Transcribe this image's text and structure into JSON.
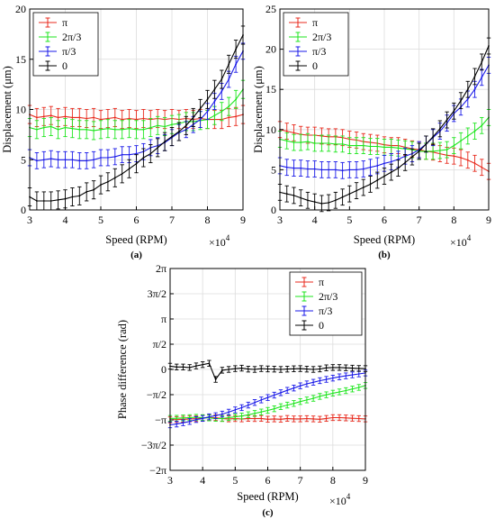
{
  "colors": {
    "pi": "#e8291c",
    "two_pi_3": "#1ee61e",
    "pi_3": "#1a1ae8",
    "zero": "#000000"
  },
  "chart_data": [
    {
      "id": "a",
      "type": "line",
      "panel_label": "(a)",
      "xlabel": "Speed (RPM)",
      "ylabel": "Displacement (μm)",
      "x_multiplier": "×10",
      "x_multiplier_exp": "4",
      "xlim": [
        3,
        9
      ],
      "ylim": [
        0,
        20
      ],
      "xticks": [
        3,
        4,
        5,
        6,
        7,
        8,
        9
      ],
      "xtick_labels": [
        "3",
        "4",
        "5",
        "6",
        "7",
        "8",
        "9"
      ],
      "yticks": [
        0,
        5,
        10,
        15,
        20
      ],
      "ytick_labels": [
        "0",
        "5",
        "10",
        "15",
        "20"
      ],
      "grid": true,
      "legend_position": "top-left",
      "x": [
        3.0,
        3.2,
        3.4,
        3.6,
        3.8,
        4.0,
        4.2,
        4.4,
        4.6,
        4.8,
        5.0,
        5.2,
        5.4,
        5.6,
        5.8,
        6.0,
        6.2,
        6.4,
        6.6,
        6.8,
        7.0,
        7.2,
        7.4,
        7.6,
        7.8,
        8.0,
        8.2,
        8.4,
        8.6,
        8.8,
        9.0
      ],
      "series": [
        {
          "name": "π",
          "color_key": "pi",
          "err": 0.9,
          "values": [
            9.5,
            9.2,
            9.3,
            9.4,
            9.2,
            9.3,
            9.2,
            9.2,
            9.1,
            9.2,
            9.0,
            9.1,
            9.2,
            9.0,
            9.1,
            9.0,
            9.1,
            9.0,
            9.1,
            9.0,
            9.1,
            9.0,
            9.1,
            9.0,
            9.1,
            9.0,
            9.0,
            9.0,
            9.2,
            9.3,
            9.5
          ]
        },
        {
          "name": "2π/3",
          "color_key": "two_pi_3",
          "err": 0.9,
          "values": [
            8.2,
            8.0,
            8.2,
            8.3,
            8.0,
            8.2,
            8.1,
            8.0,
            8.0,
            7.9,
            8.0,
            8.1,
            8.0,
            8.0,
            8.1,
            8.0,
            8.0,
            8.2,
            8.4,
            8.3,
            8.5,
            8.6,
            8.8,
            8.8,
            8.9,
            9.0,
            9.4,
            9.8,
            10.3,
            11.0,
            12.0
          ]
        },
        {
          "name": "π/3",
          "color_key": "pi_3",
          "err": 0.8,
          "values": [
            5.2,
            4.9,
            5.0,
            5.1,
            5.0,
            5.0,
            5.0,
            4.9,
            4.9,
            5.0,
            5.2,
            5.2,
            5.3,
            5.5,
            5.5,
            5.6,
            5.8,
            6.2,
            6.4,
            6.7,
            7.2,
            7.7,
            8.0,
            8.5,
            9.0,
            9.8,
            10.8,
            11.8,
            13.0,
            14.5,
            15.8
          ]
        },
        {
          "name": "0",
          "color_key": "zero",
          "err": 0.9,
          "values": [
            1.3,
            0.9,
            0.9,
            0.9,
            1.0,
            1.1,
            1.3,
            1.4,
            1.8,
            2.0,
            2.5,
            2.8,
            3.2,
            3.6,
            4.1,
            4.6,
            5.2,
            5.6,
            6.2,
            6.8,
            7.3,
            7.8,
            8.4,
            9.2,
            10.1,
            11.0,
            12.0,
            13.0,
            14.5,
            16.0,
            17.4
          ]
        }
      ]
    },
    {
      "id": "b",
      "type": "line",
      "panel_label": "(b)",
      "xlabel": "Speed (RPM)",
      "ylabel": "Displacement (μm)",
      "x_multiplier": "×10",
      "x_multiplier_exp": "4",
      "xlim": [
        3,
        9
      ],
      "ylim": [
        0,
        25
      ],
      "xticks": [
        3,
        4,
        5,
        6,
        7,
        8,
        9
      ],
      "xtick_labels": [
        "3",
        "4",
        "5",
        "6",
        "7",
        "8",
        "9"
      ],
      "yticks": [
        0,
        5,
        10,
        15,
        20,
        25
      ],
      "ytick_labels": [
        "0",
        "5",
        "10",
        "15",
        "20",
        "25"
      ],
      "grid": true,
      "legend_position": "top-left",
      "x": [
        3.0,
        3.2,
        3.4,
        3.6,
        3.8,
        4.0,
        4.2,
        4.4,
        4.6,
        4.8,
        5.0,
        5.2,
        5.4,
        5.6,
        5.8,
        6.0,
        6.2,
        6.4,
        6.6,
        6.8,
        7.0,
        7.2,
        7.4,
        7.6,
        7.8,
        8.0,
        8.2,
        8.4,
        8.6,
        8.8,
        9.0
      ],
      "series": [
        {
          "name": "π",
          "color_key": "pi",
          "err": 1.0,
          "values": [
            10.0,
            9.8,
            9.6,
            9.4,
            9.3,
            9.3,
            9.2,
            9.1,
            9.1,
            9.0,
            8.8,
            8.7,
            8.5,
            8.4,
            8.3,
            8.1,
            8.0,
            8.0,
            7.8,
            7.6,
            7.5,
            7.3,
            7.2,
            7.0,
            6.8,
            6.7,
            6.5,
            6.2,
            5.8,
            5.3,
            4.8
          ]
        },
        {
          "name": "2π/3",
          "color_key": "two_pi_3",
          "err": 1.0,
          "values": [
            8.8,
            8.6,
            8.4,
            8.4,
            8.5,
            8.3,
            8.3,
            8.3,
            8.2,
            8.2,
            8.0,
            8.0,
            8.0,
            7.9,
            7.9,
            7.8,
            7.8,
            7.7,
            7.6,
            7.5,
            7.3,
            7.3,
            7.3,
            7.4,
            7.5,
            8.0,
            8.6,
            9.2,
            9.8,
            10.5,
            11.5
          ]
        },
        {
          "name": "π/3",
          "color_key": "pi_3",
          "err": 1.0,
          "values": [
            5.5,
            5.3,
            5.2,
            5.2,
            5.1,
            5.1,
            5.0,
            5.0,
            5.0,
            4.9,
            5.0,
            5.0,
            5.1,
            5.3,
            5.5,
            5.8,
            6.0,
            6.3,
            6.7,
            7.0,
            7.5,
            8.2,
            9.0,
            9.8,
            10.8,
            12.0,
            12.8,
            13.8,
            15.0,
            16.5,
            18.0
          ]
        },
        {
          "name": "0",
          "color_key": "zero",
          "err": 1.0,
          "values": [
            2.2,
            2.0,
            1.8,
            1.5,
            1.2,
            1.0,
            0.8,
            0.9,
            1.2,
            1.6,
            2.0,
            2.4,
            2.8,
            3.2,
            3.7,
            4.2,
            4.7,
            5.2,
            5.9,
            6.6,
            7.3,
            8.2,
            9.1,
            10.1,
            11.2,
            12.3,
            13.6,
            15.0,
            16.6,
            18.4,
            20.4
          ]
        }
      ]
    },
    {
      "id": "c",
      "type": "line",
      "panel_label": "(c)",
      "xlabel": "Speed (RPM)",
      "ylabel": "Phase difference (rad)",
      "x_multiplier": "×10",
      "x_multiplier_exp": "4",
      "xlim": [
        3,
        9
      ],
      "ylim": [
        -6.2832,
        6.2832
      ],
      "xticks": [
        3,
        4,
        5,
        6,
        7,
        8,
        9
      ],
      "xtick_labels": [
        "3",
        "4",
        "5",
        "6",
        "7",
        "8",
        "9"
      ],
      "yticks": [
        -6.2832,
        -4.7124,
        -3.1416,
        -1.5708,
        0,
        1.5708,
        3.1416,
        4.7124,
        6.2832
      ],
      "ytick_labels": [
        "−2π",
        "−3π/2",
        "−π",
        "−π/2",
        "0",
        "π/2",
        "π",
        "3π/2",
        "2π"
      ],
      "grid": true,
      "legend_position": "top-right",
      "x": [
        3.0,
        3.2,
        3.4,
        3.6,
        3.8,
        4.0,
        4.2,
        4.4,
        4.6,
        4.8,
        5.0,
        5.2,
        5.4,
        5.6,
        5.8,
        6.0,
        6.2,
        6.4,
        6.6,
        6.8,
        7.0,
        7.2,
        7.4,
        7.6,
        7.8,
        8.0,
        8.2,
        8.4,
        8.6,
        8.8,
        9.0
      ],
      "series": [
        {
          "name": "π",
          "color_key": "pi",
          "err": 0.18,
          "values": [
            -3.14,
            -3.12,
            -3.1,
            -3.08,
            -3.06,
            -3.02,
            -3.0,
            -3.0,
            -3.05,
            -3.08,
            -3.06,
            -3.08,
            -3.05,
            -3.06,
            -3.05,
            -3.1,
            -3.08,
            -3.1,
            -3.05,
            -3.08,
            -3.08,
            -3.06,
            -3.08,
            -3.1,
            -3.05,
            -3.0,
            -3.0,
            -3.02,
            -3.04,
            -3.06,
            -3.08
          ]
        },
        {
          "name": "2π/3",
          "color_key": "two_pi_3",
          "err": 0.18,
          "values": [
            -3.05,
            -3.04,
            -3.02,
            -3.0,
            -2.98,
            -3.0,
            -3.02,
            -3.05,
            -3.06,
            -3.0,
            -2.95,
            -2.9,
            -2.82,
            -2.74,
            -2.65,
            -2.55,
            -2.45,
            -2.32,
            -2.22,
            -2.12,
            -2.0,
            -1.9,
            -1.8,
            -1.68,
            -1.58,
            -1.48,
            -1.4,
            -1.32,
            -1.22,
            -1.12,
            -1.0
          ]
        },
        {
          "name": "π/3",
          "color_key": "pi_3",
          "err": 0.18,
          "values": [
            -3.45,
            -3.4,
            -3.32,
            -3.24,
            -3.12,
            -3.05,
            -2.95,
            -2.88,
            -2.78,
            -2.66,
            -2.52,
            -2.38,
            -2.22,
            -2.06,
            -1.9,
            -1.75,
            -1.6,
            -1.45,
            -1.3,
            -1.16,
            -1.02,
            -0.9,
            -0.8,
            -0.7,
            -0.62,
            -0.54,
            -0.46,
            -0.4,
            -0.34,
            -0.28,
            -0.22
          ]
        },
        {
          "name": "0",
          "color_key": "zero",
          "err": 0.18,
          "values": [
            0.2,
            0.15,
            0.15,
            0.12,
            0.22,
            0.3,
            0.38,
            -0.62,
            -0.05,
            0.0,
            0.05,
            0.08,
            0.02,
            0.0,
            0.05,
            0.03,
            0.02,
            0.0,
            0.02,
            0.04,
            0.05,
            0.02,
            0.0,
            0.03,
            0.1,
            0.12,
            0.12,
            0.1,
            0.08,
            0.06,
            0.05
          ]
        }
      ]
    }
  ]
}
